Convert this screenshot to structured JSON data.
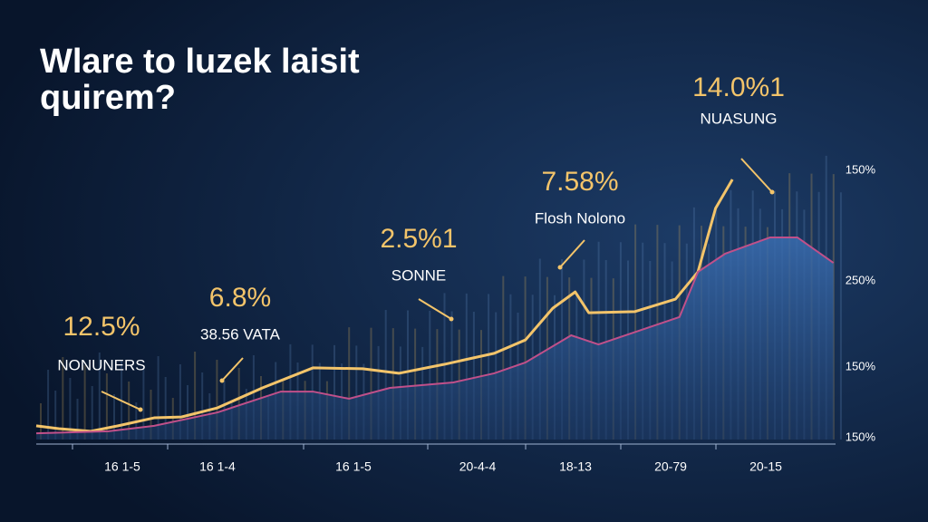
{
  "chart_data": {
    "type": "line",
    "title_lines": [
      "Wlare to luzek laisit",
      "quirem?"
    ],
    "categories": [
      "16 1-5",
      "16 1-4",
      "16 1-5",
      "20-4-4",
      "18-13",
      "20-79",
      "20-15"
    ],
    "right_labels": [
      "150%",
      "250%",
      "150%",
      "150%"
    ],
    "xlim": [
      0,
      100
    ],
    "ylim": [
      0,
      100
    ],
    "series": [
      {
        "name": "line",
        "color": "#f3c46a",
        "x": [
          0,
          2.8,
          6.8,
          10.2,
          14.7,
          18.1,
          22.6,
          28.2,
          34.5,
          40.7,
          45.2,
          50.8,
          57.1,
          61,
          64.4,
          67.2,
          68.9,
          74.6,
          79.7,
          82.5,
          84.7,
          86.8
        ],
        "values": [
          4.8,
          3.8,
          2.9,
          4.8,
          7.6,
          7.9,
          11.1,
          18.1,
          25.1,
          24.8,
          23.2,
          26.3,
          30.2,
          34.9,
          46.0,
          51.7,
          44.4,
          44.8,
          49.2,
          58.7,
          81.0,
          91.1
        ]
      },
      {
        "name": "area",
        "color": "#c0508a",
        "x": [
          0,
          9,
          14.7,
          22.6,
          30.5,
          34.5,
          39,
          44.1,
          52,
          57.1,
          61,
          66.7,
          70.1,
          80.2,
          82.5,
          85.9,
          91.5,
          94.9,
          99.4
        ],
        "values": [
          2.2,
          2.9,
          4.8,
          9.5,
          16.8,
          16.8,
          14.3,
          18.1,
          20,
          23.2,
          27,
          36.5,
          33.3,
          42.9,
          58.7,
          65.1,
          70.8,
          70.8,
          61.9
        ]
      }
    ],
    "annotations": [
      {
        "value": "12.5%",
        "label": "NONUNERS"
      },
      {
        "value": "6.8%",
        "label": "38.56 VATA"
      },
      {
        "value": "2.5%1",
        "label": "SONNE"
      },
      {
        "value": "7.58%",
        "label": "Flosh Nolono"
      },
      {
        "value": "14.0%1",
        "label": "NUASUNG"
      }
    ]
  }
}
